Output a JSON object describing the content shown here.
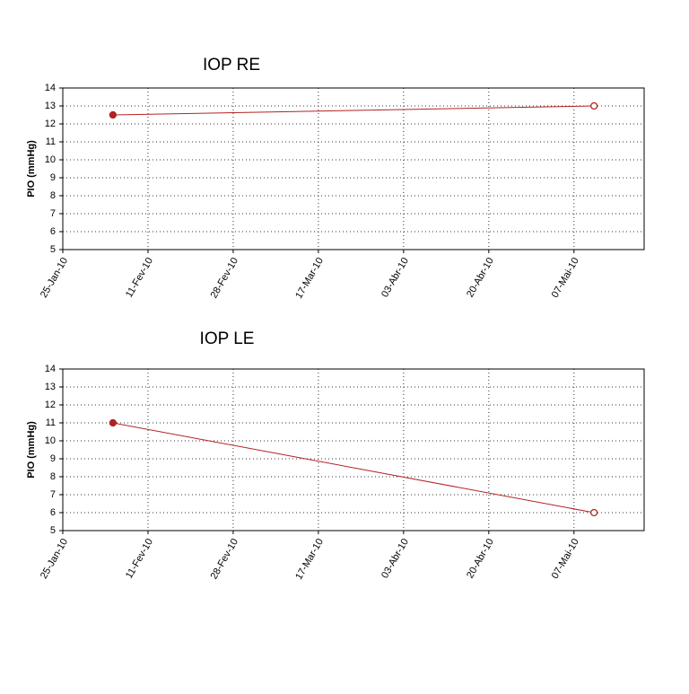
{
  "chart_data": [
    {
      "type": "line",
      "title": "IOP RE",
      "y_label": "PIO (mmHg)",
      "x": [
        "2010-02-04",
        "2010-05-11"
      ],
      "series": [
        {
          "color": "#b22222",
          "values": [
            12.5,
            13.0
          ]
        }
      ],
      "xlim": [
        "2010-01-25",
        "2010-05-21"
      ],
      "xticks": [
        {
          "value": "2010-01-25",
          "label": "25-Jan-10"
        },
        {
          "value": "2010-02-11",
          "label": "11-Fev-10"
        },
        {
          "value": "2010-02-28",
          "label": "28-Fev-10"
        },
        {
          "value": "2010-03-17",
          "label": "17-Mar-10"
        },
        {
          "value": "2010-04-03",
          "label": "03-Abr-10"
        },
        {
          "value": "2010-04-20",
          "label": "20-Abr-10"
        },
        {
          "value": "2010-05-07",
          "label": "07-Mai-10"
        }
      ],
      "ylim": [
        5,
        14
      ],
      "yticks": [
        5,
        6,
        7,
        8,
        9,
        10,
        11,
        12,
        13,
        14
      ],
      "grid": true
    },
    {
      "type": "line",
      "title": "IOP LE",
      "y_label": "PIO (mmHg)",
      "x": [
        "2010-02-04",
        "2010-05-11"
      ],
      "series": [
        {
          "color": "#b22222",
          "values": [
            11,
            6
          ]
        }
      ],
      "xlim": [
        "2010-01-25",
        "2010-05-21"
      ],
      "xticks": [
        {
          "value": "2010-01-25",
          "label": "25-Jan-10"
        },
        {
          "value": "2010-02-11",
          "label": "11-Fev-10"
        },
        {
          "value": "2010-02-28",
          "label": "28-Fev-10"
        },
        {
          "value": "2010-03-17",
          "label": "17-Mar-10"
        },
        {
          "value": "2010-04-03",
          "label": "03-Abr-10"
        },
        {
          "value": "2010-04-20",
          "label": "20-Abr-10"
        },
        {
          "value": "2010-05-07",
          "label": "07-Mai-10"
        }
      ],
      "ylim": [
        5,
        14
      ],
      "yticks": [
        5,
        6,
        7,
        8,
        9,
        10,
        11,
        12,
        13,
        14
      ],
      "grid": true
    }
  ]
}
